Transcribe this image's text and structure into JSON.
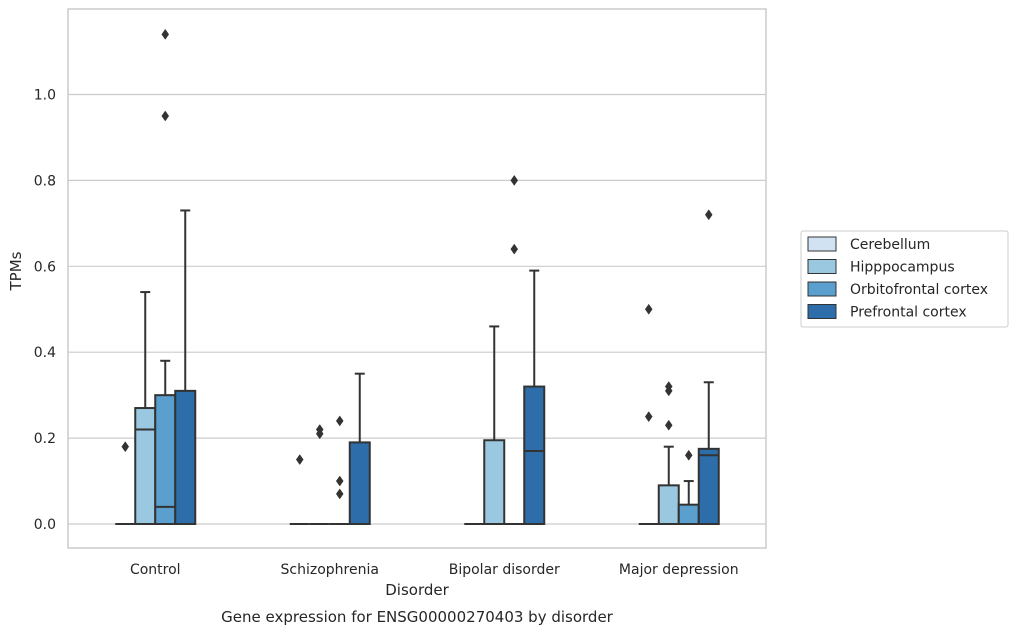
{
  "chart_data": {
    "type": "box",
    "title": "Gene expression for ENSG00000270403 by disorder",
    "xlabel": "Disorder",
    "ylabel": "TPMs",
    "ylim": [
      -0.055,
      1.2
    ],
    "yticks": [
      0.0,
      0.2,
      0.4,
      0.6,
      0.8,
      1.0
    ],
    "ytick_labels": [
      "0.0",
      "0.2",
      "0.4",
      "0.6",
      "0.8",
      "1.0"
    ],
    "grid": "horizontal",
    "legend_position": "right",
    "categories": [
      "Control",
      "Schizophrenia",
      "Bipolar disorder",
      "Major depression"
    ],
    "series": [
      {
        "name": "Cerebellum",
        "color": "#d1e2f2",
        "boxes": [
          {
            "q1": 0,
            "median": 0,
            "q3": 0,
            "whisker_low": 0,
            "whisker_high": 0,
            "outliers": [
              0.18
            ]
          },
          {
            "q1": 0,
            "median": 0,
            "q3": 0,
            "whisker_low": 0,
            "whisker_high": 0,
            "outliers": [
              0.15
            ]
          },
          {
            "q1": 0,
            "median": 0,
            "q3": 0,
            "whisker_low": 0,
            "whisker_high": 0,
            "outliers": []
          },
          {
            "q1": 0,
            "median": 0,
            "q3": 0,
            "whisker_low": 0,
            "whisker_high": 0,
            "outliers": [
              0.5,
              0.25
            ]
          }
        ]
      },
      {
        "name": "Hipppocampus",
        "color": "#9ac8e0",
        "boxes": [
          {
            "q1": 0,
            "median": 0.22,
            "q3": 0.27,
            "whisker_low": 0,
            "whisker_high": 0.54,
            "outliers": []
          },
          {
            "q1": 0,
            "median": 0,
            "q3": 0,
            "whisker_low": 0,
            "whisker_high": 0,
            "outliers": [
              0.22,
              0.21
            ]
          },
          {
            "q1": 0,
            "median": 0,
            "q3": 0.195,
            "whisker_low": 0,
            "whisker_high": 0.46,
            "outliers": []
          },
          {
            "q1": 0,
            "median": 0,
            "q3": 0.09,
            "whisker_low": 0,
            "whisker_high": 0.18,
            "outliers": [
              0.32,
              0.31,
              0.23
            ]
          }
        ]
      },
      {
        "name": "Orbitofrontal cortex",
        "color": "#5a9fcd",
        "boxes": [
          {
            "q1": 0,
            "median": 0.04,
            "q3": 0.3,
            "whisker_low": 0,
            "whisker_high": 0.38,
            "outliers": [
              1.14,
              0.95
            ]
          },
          {
            "q1": 0,
            "median": 0,
            "q3": 0,
            "whisker_low": 0,
            "whisker_high": 0,
            "outliers": [
              0.24,
              0.1,
              0.07
            ]
          },
          {
            "q1": 0,
            "median": 0,
            "q3": 0,
            "whisker_low": 0,
            "whisker_high": 0,
            "outliers": [
              0.8,
              0.64
            ]
          },
          {
            "q1": 0,
            "median": 0,
            "q3": 0.045,
            "whisker_low": 0,
            "whisker_high": 0.1,
            "outliers": [
              0.16
            ]
          }
        ]
      },
      {
        "name": "Prefrontal cortex",
        "color": "#2d6da9",
        "boxes": [
          {
            "q1": 0,
            "median": 0,
            "q3": 0.31,
            "whisker_low": 0,
            "whisker_high": 0.73,
            "outliers": []
          },
          {
            "q1": 0,
            "median": 0,
            "q3": 0.19,
            "whisker_low": 0,
            "whisker_high": 0.35,
            "outliers": []
          },
          {
            "q1": 0,
            "median": 0.17,
            "q3": 0.32,
            "whisker_low": 0,
            "whisker_high": 0.59,
            "outliers": []
          },
          {
            "q1": 0,
            "median": 0.16,
            "q3": 0.175,
            "whisker_low": 0,
            "whisker_high": 0.33,
            "outliers": [
              0.72
            ]
          }
        ]
      }
    ]
  }
}
